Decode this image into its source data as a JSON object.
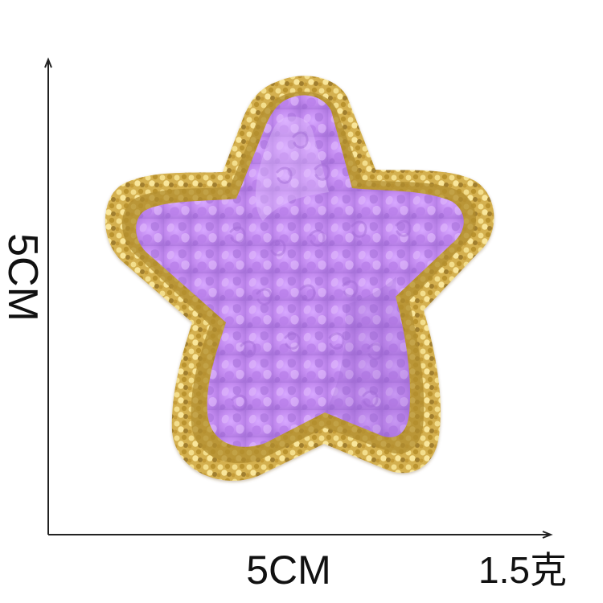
{
  "product_photo": {
    "subject": "star-patch",
    "colors": {
      "background": "#ffffff",
      "chenille_purple": "#c38bf0",
      "chenille_highlight": "#dcb3fb",
      "chenille_shadow": "#9f68d3",
      "glitter_gold": "#d4b04f",
      "glitter_dark": "#8a6a1e",
      "glitter_light": "#f4e08f",
      "dimension_line": "#222222"
    }
  },
  "dimensions": {
    "height_label": "5CM",
    "width_label": "5CM",
    "weight_label": "1.5克"
  }
}
